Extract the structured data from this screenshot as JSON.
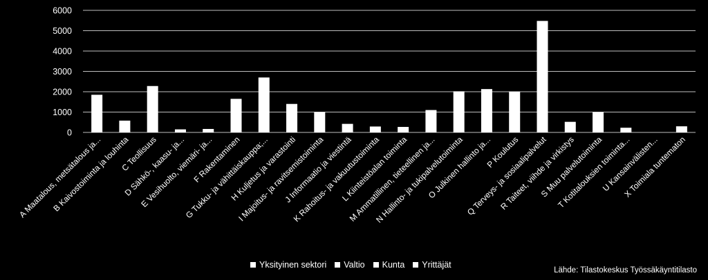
{
  "chart_data": {
    "type": "bar",
    "ylim": [
      0,
      6000
    ],
    "yticks": [
      0,
      1000,
      2000,
      3000,
      4000,
      5000,
      6000
    ],
    "grid": true,
    "categories": [
      "A    Maatalous, metsätalous ja...",
      "B    Kaivostoiminta ja louhinta",
      "C    Teollisuus",
      "D    Sähkö-, kaasu- ja...",
      "E    Vesihuolto, viemäri- ja...",
      "F    Rakentaminen",
      "G    Tukku- ja vähittäiskauppa;...",
      "H    Kuljetus ja varastointi",
      "I    Majoitus- ja ravitsemistoiminta",
      "J    Informaatio ja viestintä",
      "K    Rahoitus- ja vakuutustoiminta",
      "L    Kiinteistöalan toiminta",
      "M    Ammatillinen, tieteellinen ja...",
      "N    Hallinto- ja tukipalvelutoiminta",
      "O    Julkinen hallinto ja...",
      "P    Koulutus",
      "Q    Terveys- ja sosiaalipalvelut",
      "R    Taiteet, viihde ja virkistys",
      "S    Muu palvelutoiminta",
      "T    Kotitalouksien toiminta...",
      "U    Kansainvälisten...",
      "X    Toimiala tuntematon"
    ],
    "values": [
      1850,
      580,
      2280,
      150,
      170,
      1650,
      2700,
      1400,
      1000,
      420,
      290,
      270,
      1100,
      2020,
      2130,
      2010,
      5480,
      520,
      1000,
      230,
      0,
      300
    ],
    "legend": [
      "Yksityinen sektori",
      "Valtio",
      "Kunta",
      "Yrittäjät"
    ],
    "legend_position": "bottom",
    "colors": {
      "bar": "#ffffff",
      "background": "#000000",
      "grid": "#ffffff"
    }
  },
  "source_note": "Lähde: Tilastokeskus Työssäkäyntitilasto"
}
